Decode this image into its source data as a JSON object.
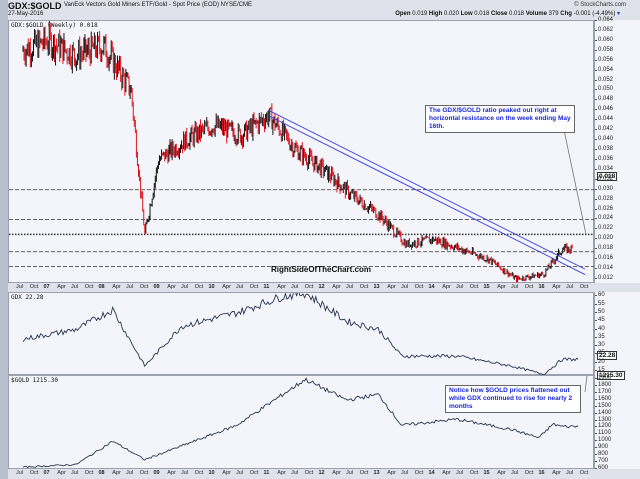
{
  "header": {
    "symbol": "GDX:$GOLD",
    "description": "VanEck Vectors Gold Miners ETF/Gold - Spot Price (EOD) NYSE/CME",
    "date": "27-May-2016",
    "brand": "© StockCharts.com",
    "open_label": "Open",
    "open": "0.019",
    "high_label": "High",
    "high": "0.020",
    "low_label": "Low",
    "low": "0.018",
    "close_label": "Close",
    "close": "0.018",
    "volume_label": "Volume",
    "volume": "379",
    "chg_label": "Chg",
    "chg": "-0.001 (-4.49%)"
  },
  "panels": {
    "ratio": {
      "legend": "GDX:$GOLD (Weekly) 0.018",
      "last_tag": "0.018"
    },
    "gdx": {
      "legend": "GDX 22.28",
      "last_tag": "22.28"
    },
    "gold": {
      "legend": "$GOLD 1215.30",
      "last_tag": "1215.30"
    }
  },
  "annotations": {
    "top_note": "The GDX/$GOLD ratio peaked out right at horizontal resistance on the week ending May 16th.",
    "bottom_note": "Notice how $GOLD prices flattened out while GDX continued to rise for nearly 2 months",
    "watermark": "RightSideOfTheChart.com"
  },
  "colors": {
    "up": "#111111",
    "down": "#e0141e",
    "trendline": "#3a3ee0",
    "line": "#2a3550",
    "note_text": "#1b27d6"
  },
  "x_ticks": [
    {
      "l": "Jul",
      "y": false
    },
    {
      "l": "Oct",
      "y": false
    },
    {
      "l": "07",
      "y": true
    },
    {
      "l": "Apr",
      "y": false
    },
    {
      "l": "Jul",
      "y": false
    },
    {
      "l": "Oct",
      "y": false
    },
    {
      "l": "08",
      "y": true
    },
    {
      "l": "Apr",
      "y": false
    },
    {
      "l": "Jul",
      "y": false
    },
    {
      "l": "Oct",
      "y": false
    },
    {
      "l": "09",
      "y": true
    },
    {
      "l": "Apr",
      "y": false
    },
    {
      "l": "Jul",
      "y": false
    },
    {
      "l": "Oct",
      "y": false
    },
    {
      "l": "10",
      "y": true
    },
    {
      "l": "Apr",
      "y": false
    },
    {
      "l": "Jul",
      "y": false
    },
    {
      "l": "Oct",
      "y": false
    },
    {
      "l": "11",
      "y": true
    },
    {
      "l": "Apr",
      "y": false
    },
    {
      "l": "Jul",
      "y": false
    },
    {
      "l": "Oct",
      "y": false
    },
    {
      "l": "12",
      "y": true
    },
    {
      "l": "Apr",
      "y": false
    },
    {
      "l": "Jul",
      "y": false
    },
    {
      "l": "Oct",
      "y": false
    },
    {
      "l": "13",
      "y": true
    },
    {
      "l": "Apr",
      "y": false
    },
    {
      "l": "Jul",
      "y": false
    },
    {
      "l": "Oct",
      "y": false
    },
    {
      "l": "14",
      "y": true
    },
    {
      "l": "Apr",
      "y": false
    },
    {
      "l": "Jul",
      "y": false
    },
    {
      "l": "Oct",
      "y": false
    },
    {
      "l": "15",
      "y": true
    },
    {
      "l": "Apr",
      "y": false
    },
    {
      "l": "Jul",
      "y": false
    },
    {
      "l": "Oct",
      "y": false
    },
    {
      "l": "16",
      "y": true
    },
    {
      "l": "Apr",
      "y": false
    },
    {
      "l": "Jul",
      "y": false
    },
    {
      "l": "Oct",
      "y": false
    }
  ],
  "chart_data": [
    {
      "type": "line",
      "title": "GDX:$GOLD (Weekly)",
      "subtitle": "VanEck Vectors Gold Miners ETF/Gold - Spot Price (EOD)",
      "xlabel": "",
      "ylabel": "Ratio",
      "ylim": [
        0.011,
        0.064
      ],
      "y_ticks": [
        0.012,
        0.014,
        0.016,
        0.018,
        0.02,
        0.022,
        0.024,
        0.026,
        0.028,
        0.03,
        0.032,
        0.034,
        0.036,
        0.038,
        0.04,
        0.042,
        0.044,
        0.046,
        0.048,
        0.05,
        0.052,
        0.054,
        0.056,
        0.058,
        0.06,
        0.062,
        0.064
      ],
      "x": [
        "2006-07",
        "2007-01",
        "2007-07",
        "2008-01",
        "2008-07",
        "2008-10",
        "2009-01",
        "2009-07",
        "2010-01",
        "2010-07",
        "2011-01",
        "2011-07",
        "2012-01",
        "2012-07",
        "2013-01",
        "2013-07",
        "2014-01",
        "2014-07",
        "2015-01",
        "2015-07",
        "2016-01",
        "2016-05"
      ],
      "values": [
        0.058,
        0.06,
        0.057,
        0.059,
        0.05,
        0.021,
        0.036,
        0.04,
        0.043,
        0.041,
        0.045,
        0.038,
        0.034,
        0.029,
        0.025,
        0.019,
        0.02,
        0.018,
        0.016,
        0.012,
        0.013,
        0.018
      ],
      "horizontal_lines": [
        0.03,
        0.024,
        0.021,
        0.0175,
        0.0145
      ],
      "trendline": {
        "from": [
          "2011-01",
          0.046
        ],
        "to": [
          "2016-10",
          0.014
        ]
      },
      "last": 0.018,
      "grid": false,
      "legend_position": "top-left"
    },
    {
      "type": "line",
      "title": "GDX",
      "ylim": [
        12,
        62
      ],
      "y_ticks": [
        15,
        20,
        25,
        30,
        35,
        40,
        45,
        50,
        55,
        60
      ],
      "x": [
        "2006-07",
        "2007-07",
        "2008-03",
        "2008-10",
        "2009-06",
        "2010-06",
        "2011-04",
        "2011-09",
        "2012-06",
        "2013-01",
        "2013-06",
        "2014-06",
        "2015-06",
        "2016-01",
        "2016-05"
      ],
      "values": [
        34,
        40,
        52,
        18,
        42,
        50,
        60,
        62,
        45,
        40,
        24,
        24,
        18,
        13,
        22
      ],
      "last": 22.28
    },
    {
      "type": "line",
      "title": "$GOLD",
      "ylim": [
        580,
        1950
      ],
      "y_ticks": [
        600,
        700,
        800,
        900,
        1000,
        1100,
        1200,
        1300,
        1400,
        1500,
        1600,
        1700,
        1800,
        1900
      ],
      "x": [
        "2006-07",
        "2007-07",
        "2008-03",
        "2008-10",
        "2009-06",
        "2010-06",
        "2011-09",
        "2012-06",
        "2013-01",
        "2013-06",
        "2014-06",
        "2015-06",
        "2015-12",
        "2016-03",
        "2016-05"
      ],
      "values": [
        620,
        660,
        1000,
        730,
        930,
        1230,
        1900,
        1600,
        1680,
        1230,
        1320,
        1170,
        1050,
        1250,
        1215
      ],
      "last": 1215.3
    }
  ]
}
